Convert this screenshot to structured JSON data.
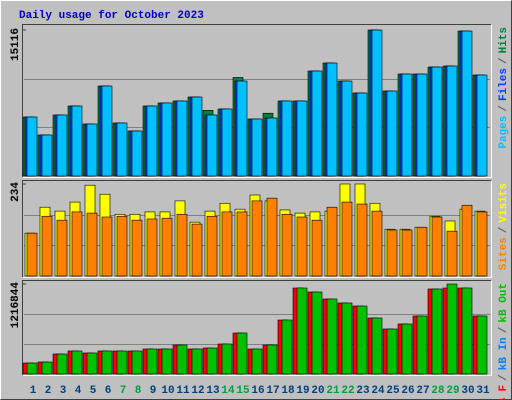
{
  "chart_data": {
    "type": "bar",
    "title": "Daily usage for October 2023",
    "categories": [
      "1",
      "2",
      "3",
      "4",
      "5",
      "6",
      "7",
      "8",
      "9",
      "10",
      "11",
      "12",
      "13",
      "14",
      "15",
      "16",
      "17",
      "18",
      "19",
      "20",
      "21",
      "22",
      "23",
      "24",
      "25",
      "26",
      "27",
      "28",
      "29",
      "30",
      "31"
    ],
    "category_colors": [
      "#00407f",
      "#00407f",
      "#00407f",
      "#00407f",
      "#00407f",
      "#00407f",
      "#00a040",
      "#00a040",
      "#00407f",
      "#00407f",
      "#00407f",
      "#00407f",
      "#00407f",
      "#00a040",
      "#00a040",
      "#00407f",
      "#00407f",
      "#00407f",
      "#00407f",
      "#00407f",
      "#00a040",
      "#00a040",
      "#00407f",
      "#00407f",
      "#00407f",
      "#00407f",
      "#00407f",
      "#00a040",
      "#00a040",
      "#00407f",
      "#00407f"
    ],
    "legend_separator": "/",
    "panels": [
      {
        "ylim": [
          0,
          15116
        ],
        "yticks": [
          15116
        ],
        "series": [
          {
            "name": "Pages",
            "color": "#00c0ff",
            "values": [
              6107,
              4244,
              6314,
              7245,
              5382,
              9315,
              5486,
              4658,
              7245,
              7556,
              7763,
              8177,
              6314,
              6935,
              9833,
              5900,
              6003,
              7763,
              7763,
              10868,
              11696,
              9833,
              8591,
              15111,
              8798,
              10557,
              10557,
              11282,
              11385,
              15008,
              10454
            ]
          },
          {
            "name": "Files",
            "color": "#0040ff",
            "values": [
              6107,
              4244,
              6314,
              7245,
              5382,
              9315,
              5486,
              4658,
              7245,
              7556,
              7763,
              8177,
              6314,
              6935,
              9833,
              5900,
              6003,
              7763,
              7763,
              10868,
              11696,
              9833,
              8591,
              15111,
              8798,
              10557,
              10557,
              11282,
              11385,
              15008,
              10454
            ]
          },
          {
            "name": "Hits",
            "color": "#008040",
            "values": [
              6107,
              4244,
              6314,
              7245,
              5382,
              9315,
              5486,
              4658,
              7245,
              7556,
              7763,
              8177,
              6800,
              6935,
              10200,
              5900,
              6500,
              7763,
              7763,
              10868,
              11696,
              9833,
              8591,
              15116,
              8798,
              10557,
              10557,
              11282,
              11385,
              15008,
              10454
            ]
          }
        ]
      },
      {
        "ylim": [
          0,
          234
        ],
        "yticks": [
          234
        ],
        "series": [
          {
            "name": "Sites",
            "color": "#ff8000",
            "values": [
              109,
              152,
              142,
              163,
              160,
              150,
              152,
              142,
              145,
              147,
              157,
              132,
              152,
              163,
              163,
              191,
              198,
              157,
              150,
              142,
              175,
              188,
              183,
              165,
              117,
              117,
              124,
              150,
              114,
              180,
              163
            ]
          },
          {
            "name": "Visits",
            "color": "#ffff00",
            "values": [
              109,
              175,
              165,
              188,
              231,
              208,
              157,
              157,
              163,
              163,
              191,
              137,
              165,
              185,
              170,
              206,
              191,
              168,
              160,
              163,
              165,
              234,
              234,
              185,
              119,
              119,
              124,
              152,
              140,
              170,
              165
            ]
          }
        ]
      },
      {
        "ylim": [
          0,
          1216844
        ],
        "yticks": [
          1216844
        ],
        "series": [
          {
            "name": "kB F",
            "color": "#ff0000",
            "values": [
              148720,
              162240,
              270400,
              310960,
              283920,
              310960,
              310960,
              310960,
              338000,
              338000,
              392080,
              338000,
              351520,
              405600,
              554320,
              338000,
              392080,
              730080,
              1162720,
              1108640,
              1014000,
              959920,
              919360,
              757120,
              608400,
              676000,
              784160,
              1149200,
              1162720,
              1162720,
              784160
            ]
          },
          {
            "name": "kB In",
            "color": "#0080ff",
            "values": [
              0,
              0,
              0,
              0,
              0,
              0,
              0,
              0,
              0,
              0,
              0,
              0,
              0,
              0,
              0,
              0,
              0,
              0,
              0,
              0,
              0,
              0,
              0,
              0,
              0,
              0,
              0,
              0,
              0,
              0,
              0
            ]
          },
          {
            "name": "kB Out",
            "color": "#00c000",
            "values": [
              148720,
              162240,
              270400,
              310960,
              283920,
              310960,
              310960,
              310960,
              338000,
              338000,
              392080,
              338000,
              351520,
              405600,
              554320,
              338000,
              392080,
              730080,
              1162720,
              1108640,
              1014000,
              959920,
              919360,
              757120,
              608400,
              676000,
              784160,
              1149200,
              1216844,
              1162720,
              784160
            ]
          }
        ]
      }
    ]
  }
}
